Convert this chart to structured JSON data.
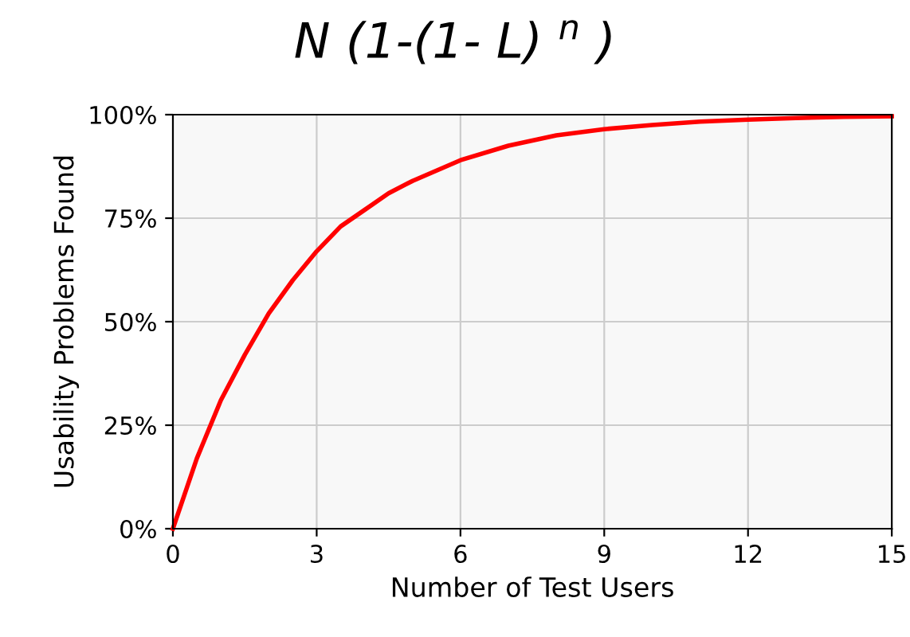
{
  "chart_data": {
    "type": "line",
    "title": "N (1-(1- L) $^{n}$ )",
    "xlabel": "Number of Test Users",
    "ylabel": "Usability Problems Found",
    "x": [
      0,
      0.5,
      1,
      1.5,
      2,
      2.5,
      3,
      3.5,
      4,
      4.5,
      5,
      6,
      7,
      8,
      9,
      10,
      11,
      12,
      13,
      14,
      15
    ],
    "series": [
      {
        "color": "#ff0000",
        "values": [
          0,
          17,
          31,
          42,
          52,
          60,
          67,
          73,
          77,
          81,
          84,
          89,
          92.5,
          95,
          96.5,
          97.5,
          98.3,
          98.8,
          99.2,
          99.5,
          99.6
        ]
      }
    ],
    "xlim": [
      0,
      15
    ],
    "ylim": [
      0,
      100
    ],
    "xticks": [
      0,
      3,
      6,
      9,
      12,
      15
    ],
    "yticks": [
      {
        "value": 0,
        "label": "0%"
      },
      {
        "value": 25,
        "label": "25%"
      },
      {
        "value": 50,
        "label": "50%"
      },
      {
        "value": 75,
        "label": "75%"
      },
      {
        "value": 100,
        "label": "100%"
      }
    ],
    "grid": true,
    "line_style": "solid",
    "marker": "none"
  }
}
